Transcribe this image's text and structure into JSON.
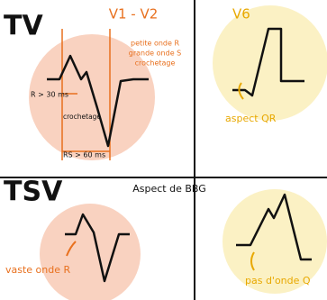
{
  "tv": {
    "label": "TV",
    "v1_v2": {
      "title": "V1 - V2",
      "notes": [
        "petite onde R",
        "grande onde S",
        "crochetage"
      ],
      "r_duration": "R > 30 ms",
      "notch": "crochetage",
      "rs_duration": "RS > 60 ms"
    },
    "v6": {
      "title": "V6",
      "note": "aspect QR"
    }
  },
  "tsv": {
    "label": "TSV",
    "title": "Aspect de BBG",
    "v1_note": "vaste onde R",
    "v6_note": "pas d'onde Q"
  }
}
